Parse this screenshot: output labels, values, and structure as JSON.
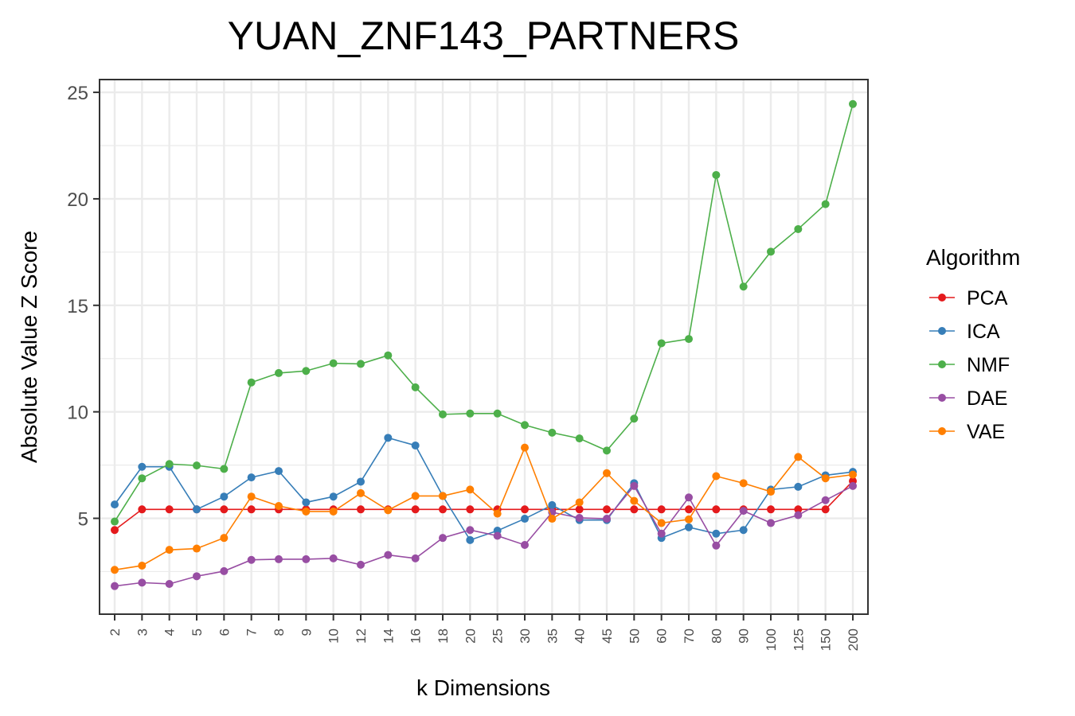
{
  "chart_data": {
    "type": "line",
    "title": "YUAN_ZNF143_PARTNERS",
    "xlabel": "k Dimensions",
    "ylabel": "Absolute Value Z Score",
    "categories": [
      "2",
      "3",
      "4",
      "5",
      "6",
      "7",
      "8",
      "9",
      "10",
      "12",
      "14",
      "16",
      "18",
      "20",
      "25",
      "30",
      "35",
      "40",
      "45",
      "50",
      "60",
      "70",
      "80",
      "90",
      "100",
      "125",
      "150",
      "200"
    ],
    "ylim": [
      0.5,
      25.6
    ],
    "yticks": [
      5,
      10,
      15,
      20,
      25
    ],
    "grid": true,
    "legend": {
      "title": "Algorithm",
      "position": "right"
    },
    "series": [
      {
        "name": "PCA",
        "color": "#e41a1c",
        "values": [
          4.45,
          5.42,
          5.42,
          5.42,
          5.42,
          5.42,
          5.42,
          5.42,
          5.42,
          5.42,
          5.42,
          5.42,
          5.42,
          5.42,
          5.42,
          5.42,
          5.42,
          5.42,
          5.42,
          5.42,
          5.42,
          5.42,
          5.42,
          5.42,
          5.42,
          5.42,
          5.42,
          6.75
        ]
      },
      {
        "name": "ICA",
        "color": "#377eb8",
        "values": [
          5.65,
          7.42,
          7.42,
          5.42,
          6.02,
          6.92,
          7.22,
          5.75,
          6.02,
          6.72,
          8.78,
          8.42,
          6.05,
          3.98,
          4.42,
          4.98,
          5.62,
          4.92,
          4.92,
          6.65,
          4.08,
          4.58,
          4.28,
          4.45,
          6.35,
          6.48,
          7.02,
          7.18
        ]
      },
      {
        "name": "NMF",
        "color": "#4daf4a",
        "values": [
          4.85,
          6.88,
          7.55,
          7.48,
          7.32,
          11.38,
          11.82,
          11.92,
          12.28,
          12.25,
          12.65,
          11.15,
          9.88,
          9.92,
          9.92,
          9.38,
          9.02,
          8.75,
          8.18,
          9.68,
          13.22,
          13.42,
          21.12,
          15.88,
          17.52,
          18.58,
          19.75,
          24.45
        ]
      },
      {
        "name": "DAE",
        "color": "#984ea3",
        "values": [
          1.82,
          1.98,
          1.92,
          2.28,
          2.52,
          3.05,
          3.08,
          3.08,
          3.12,
          2.82,
          3.28,
          3.12,
          4.08,
          4.45,
          4.18,
          3.75,
          5.28,
          5.02,
          4.98,
          6.52,
          4.28,
          5.98,
          3.72,
          5.35,
          4.78,
          5.15,
          5.85,
          6.52
        ]
      },
      {
        "name": "VAE",
        "color": "#ff7f00",
        "values": [
          2.58,
          2.78,
          3.52,
          3.58,
          4.08,
          6.02,
          5.58,
          5.32,
          5.32,
          6.18,
          5.38,
          6.05,
          6.05,
          6.35,
          5.22,
          8.32,
          4.98,
          5.75,
          7.12,
          5.82,
          4.78,
          4.95,
          6.98,
          6.65,
          6.25,
          7.88,
          6.88,
          7.05
        ]
      }
    ]
  }
}
